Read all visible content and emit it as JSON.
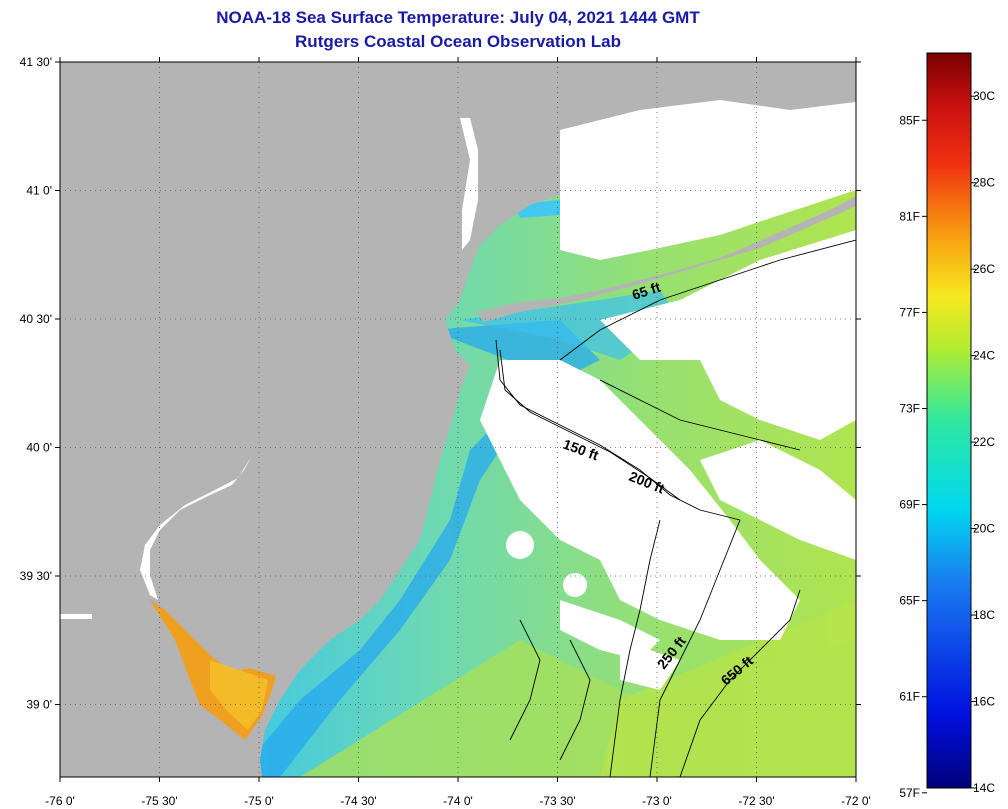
{
  "title": "NOAA-18 Sea Surface Temperature:  July 04, 2021 1444 GMT",
  "subtitle": "Rutgers Coastal Ocean Observation Lab",
  "lat_labels": [
    "41 30'",
    "41 0'",
    "40 30'",
    "40 0'",
    "39 30'",
    "39 0'"
  ],
  "lon_labels": [
    "-76 0'",
    "-75 30'",
    "-75 0'",
    "-74 30'",
    "-74 0'",
    "-73 30'",
    "-73 0'",
    "-72 30'",
    "-72 0'"
  ],
  "depth_labels": [
    "65 ft",
    "150 ft",
    "200 ft",
    "250 ft",
    "650 ft"
  ],
  "colorbar": {
    "fahrenheit": [
      "85F",
      "81F",
      "77F",
      "73F",
      "69F",
      "65F",
      "61F",
      "57F"
    ],
    "celsius": [
      "30C",
      "28C",
      "26C",
      "24C",
      "22C",
      "20C",
      "18C",
      "16C",
      "14C"
    ],
    "range_c": [
      14,
      31
    ]
  },
  "colors": {
    "land": "#b4b4b4",
    "cloud": "#ffffff",
    "title": "#1a1aa8",
    "ocean_cool": "#28a0f0",
    "ocean_mid": "#46e0d0",
    "ocean_warm": "#a6e650",
    "bay_warm": "#f0a020"
  }
}
